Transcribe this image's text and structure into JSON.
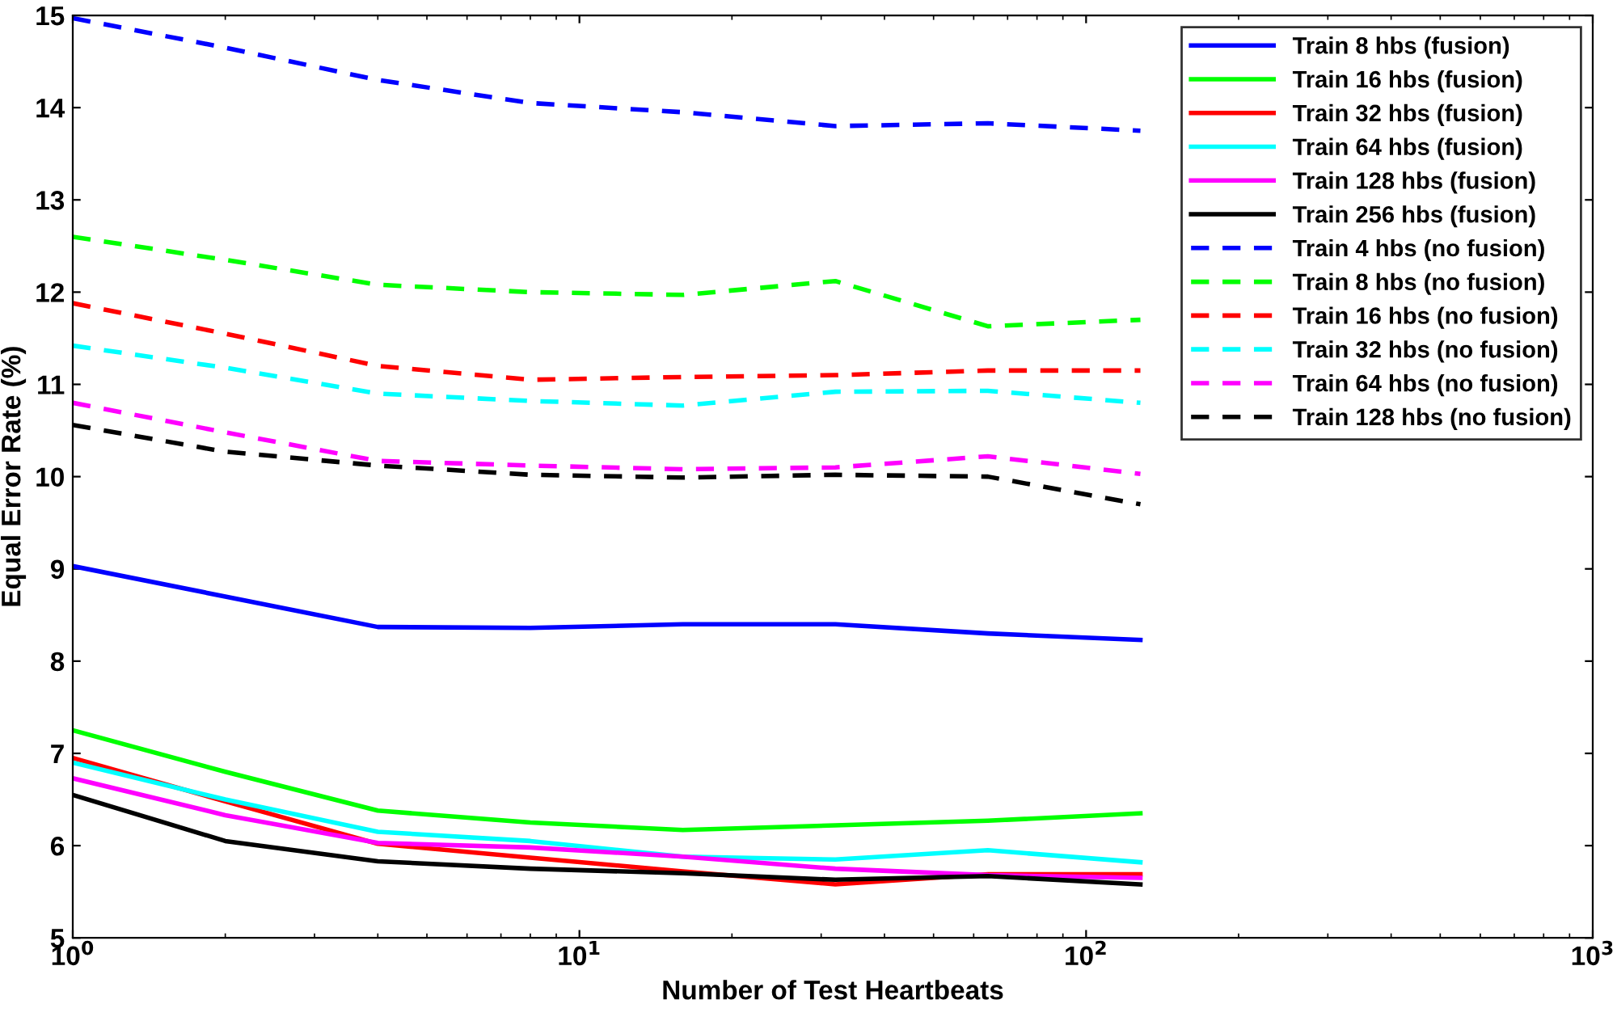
{
  "chart_data": {
    "type": "line",
    "xlabel": "Number of Test Heartbeats",
    "ylabel": "Equal Error Rate (%)",
    "x": [
      1,
      2,
      4,
      8,
      16,
      32,
      64,
      128
    ],
    "log": "x",
    "xlim": [
      1,
      1000
    ],
    "ylim": [
      5,
      15
    ],
    "xticks": [
      {
        "value": 1,
        "label": "10$^{0}$"
      },
      {
        "value": 10,
        "label": "10$^{1}$"
      },
      {
        "value": 100,
        "label": "10$^{2}$"
      },
      {
        "value": 1000,
        "label": "10$^{3}$"
      }
    ],
    "yticks": [
      5,
      6,
      7,
      8,
      9,
      10,
      11,
      12,
      13,
      14,
      15
    ],
    "grid": false,
    "legend": "top right",
    "marker": "none",
    "series": [
      {
        "name": "Train 8 hbs (fusion)",
        "color": "#0000ff",
        "line_style": "solid",
        "values": [
          9.03,
          8.7,
          8.37,
          8.36,
          8.4,
          8.4,
          8.3,
          8.23
        ]
      },
      {
        "name": "Train 16 hbs (fusion)",
        "color": "#00ff00",
        "line_style": "solid",
        "values": [
          7.25,
          6.8,
          6.38,
          6.25,
          6.17,
          6.22,
          6.27,
          6.35
        ]
      },
      {
        "name": "Train 32 hbs (fusion)",
        "color": "#ff0000",
        "line_style": "solid",
        "values": [
          6.95,
          6.48,
          6.02,
          5.87,
          5.72,
          5.58,
          5.69,
          5.69
        ]
      },
      {
        "name": "Train 64 hbs (fusion)",
        "color": "#00ffff",
        "line_style": "solid",
        "values": [
          6.9,
          6.5,
          6.15,
          6.05,
          5.88,
          5.85,
          5.95,
          5.82
        ]
      },
      {
        "name": "Train 128 hbs (fusion)",
        "color": "#ff00ff",
        "line_style": "solid",
        "values": [
          6.73,
          6.33,
          6.03,
          5.98,
          5.88,
          5.75,
          5.68,
          5.65
        ]
      },
      {
        "name": "Train 256 hbs (fusion)",
        "color": "#000000",
        "line_style": "solid",
        "values": [
          6.55,
          6.05,
          5.83,
          5.75,
          5.7,
          5.63,
          5.67,
          5.58
        ]
      },
      {
        "name": "Train 4 hbs (no fusion)",
        "color": "#0000ff",
        "line_style": "dashed",
        "values": [
          14.97,
          14.65,
          14.3,
          14.05,
          13.95,
          13.8,
          13.83,
          13.75
        ]
      },
      {
        "name": "Train 8 hbs (no fusion)",
        "color": "#00ff00",
        "line_style": "dashed",
        "values": [
          12.6,
          12.35,
          12.08,
          12.0,
          11.97,
          12.12,
          11.63,
          11.7
        ]
      },
      {
        "name": "Train 16 hbs (no fusion)",
        "color": "#ff0000",
        "line_style": "dashed",
        "values": [
          11.88,
          11.55,
          11.2,
          11.05,
          11.08,
          11.1,
          11.15,
          11.15
        ]
      },
      {
        "name": "Train 32 hbs (no fusion)",
        "color": "#00ffff",
        "line_style": "dashed",
        "values": [
          11.42,
          11.18,
          10.9,
          10.82,
          10.77,
          10.92,
          10.93,
          10.8
        ]
      },
      {
        "name": "Train 64 hbs (no fusion)",
        "color": "#ff00ff",
        "line_style": "dashed",
        "values": [
          10.8,
          10.48,
          10.17,
          10.12,
          10.08,
          10.1,
          10.22,
          10.03
        ]
      },
      {
        "name": "Train 128 hbs (no fusion)",
        "color": "#000000",
        "line_style": "dashed",
        "values": [
          10.56,
          10.27,
          10.12,
          10.02,
          9.99,
          10.02,
          10.0,
          9.7
        ]
      }
    ]
  }
}
